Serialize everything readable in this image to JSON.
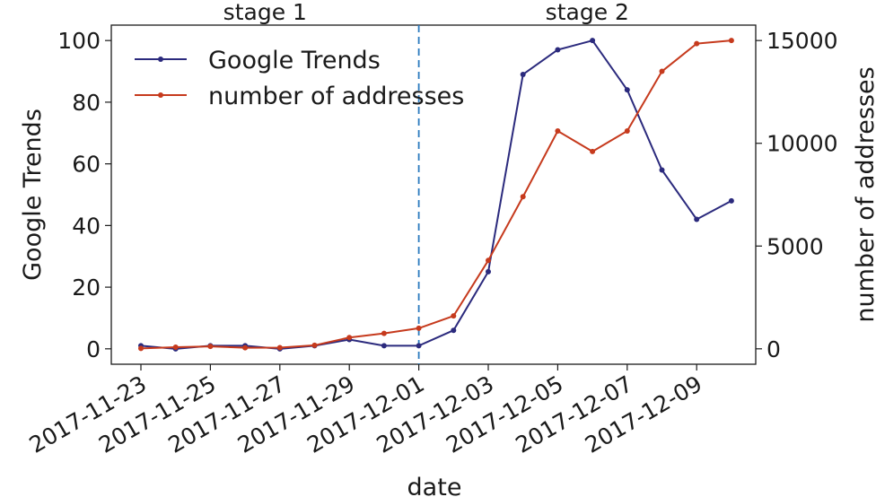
{
  "chart_data": {
    "type": "line",
    "x": [
      "2017-11-23",
      "2017-11-24",
      "2017-11-25",
      "2017-11-26",
      "2017-11-27",
      "2017-11-28",
      "2017-11-29",
      "2017-11-30",
      "2017-12-01",
      "2017-12-02",
      "2017-12-03",
      "2017-12-04",
      "2017-12-05",
      "2017-12-06",
      "2017-12-07",
      "2017-12-08",
      "2017-12-09",
      "2017-12-10"
    ],
    "x_ticks": [
      "2017-11-23",
      "2017-11-25",
      "2017-11-27",
      "2017-11-29",
      "2017-12-01",
      "2017-12-03",
      "2017-12-05",
      "2017-12-07",
      "2017-12-09"
    ],
    "xlabel": "date",
    "ylabel_left": "Google Trends",
    "ylabel_right": "number of addresses",
    "ylim_left": [
      -5,
      105
    ],
    "yticks_left": [
      0,
      20,
      40,
      60,
      80,
      100
    ],
    "ylim_right": [
      -750,
      15750
    ],
    "yticks_right": [
      0,
      5000,
      10000,
      15000
    ],
    "series": [
      {
        "name": "Google Trends",
        "axis": "left",
        "color": "#2b2a7d",
        "values": [
          1,
          0,
          1,
          1,
          0,
          1,
          3,
          1,
          1,
          6,
          25,
          89,
          97,
          100,
          84,
          58,
          42,
          48
        ]
      },
      {
        "name": "number of addresses",
        "axis": "right",
        "color": "#c63a1d",
        "values": [
          20,
          80,
          120,
          50,
          60,
          170,
          550,
          750,
          1000,
          1600,
          4300,
          7400,
          10600,
          9600,
          10600,
          13500,
          14850,
          15000
        ]
      }
    ],
    "vline": {
      "x": "2017-12-01",
      "style": "dashed",
      "color": "#2b7bbf"
    },
    "annotations": [
      {
        "text": "stage 1",
        "region": "before"
      },
      {
        "text": "stage 2",
        "region": "after"
      }
    ],
    "legend": {
      "position": "upper-left"
    },
    "grid": false
  }
}
